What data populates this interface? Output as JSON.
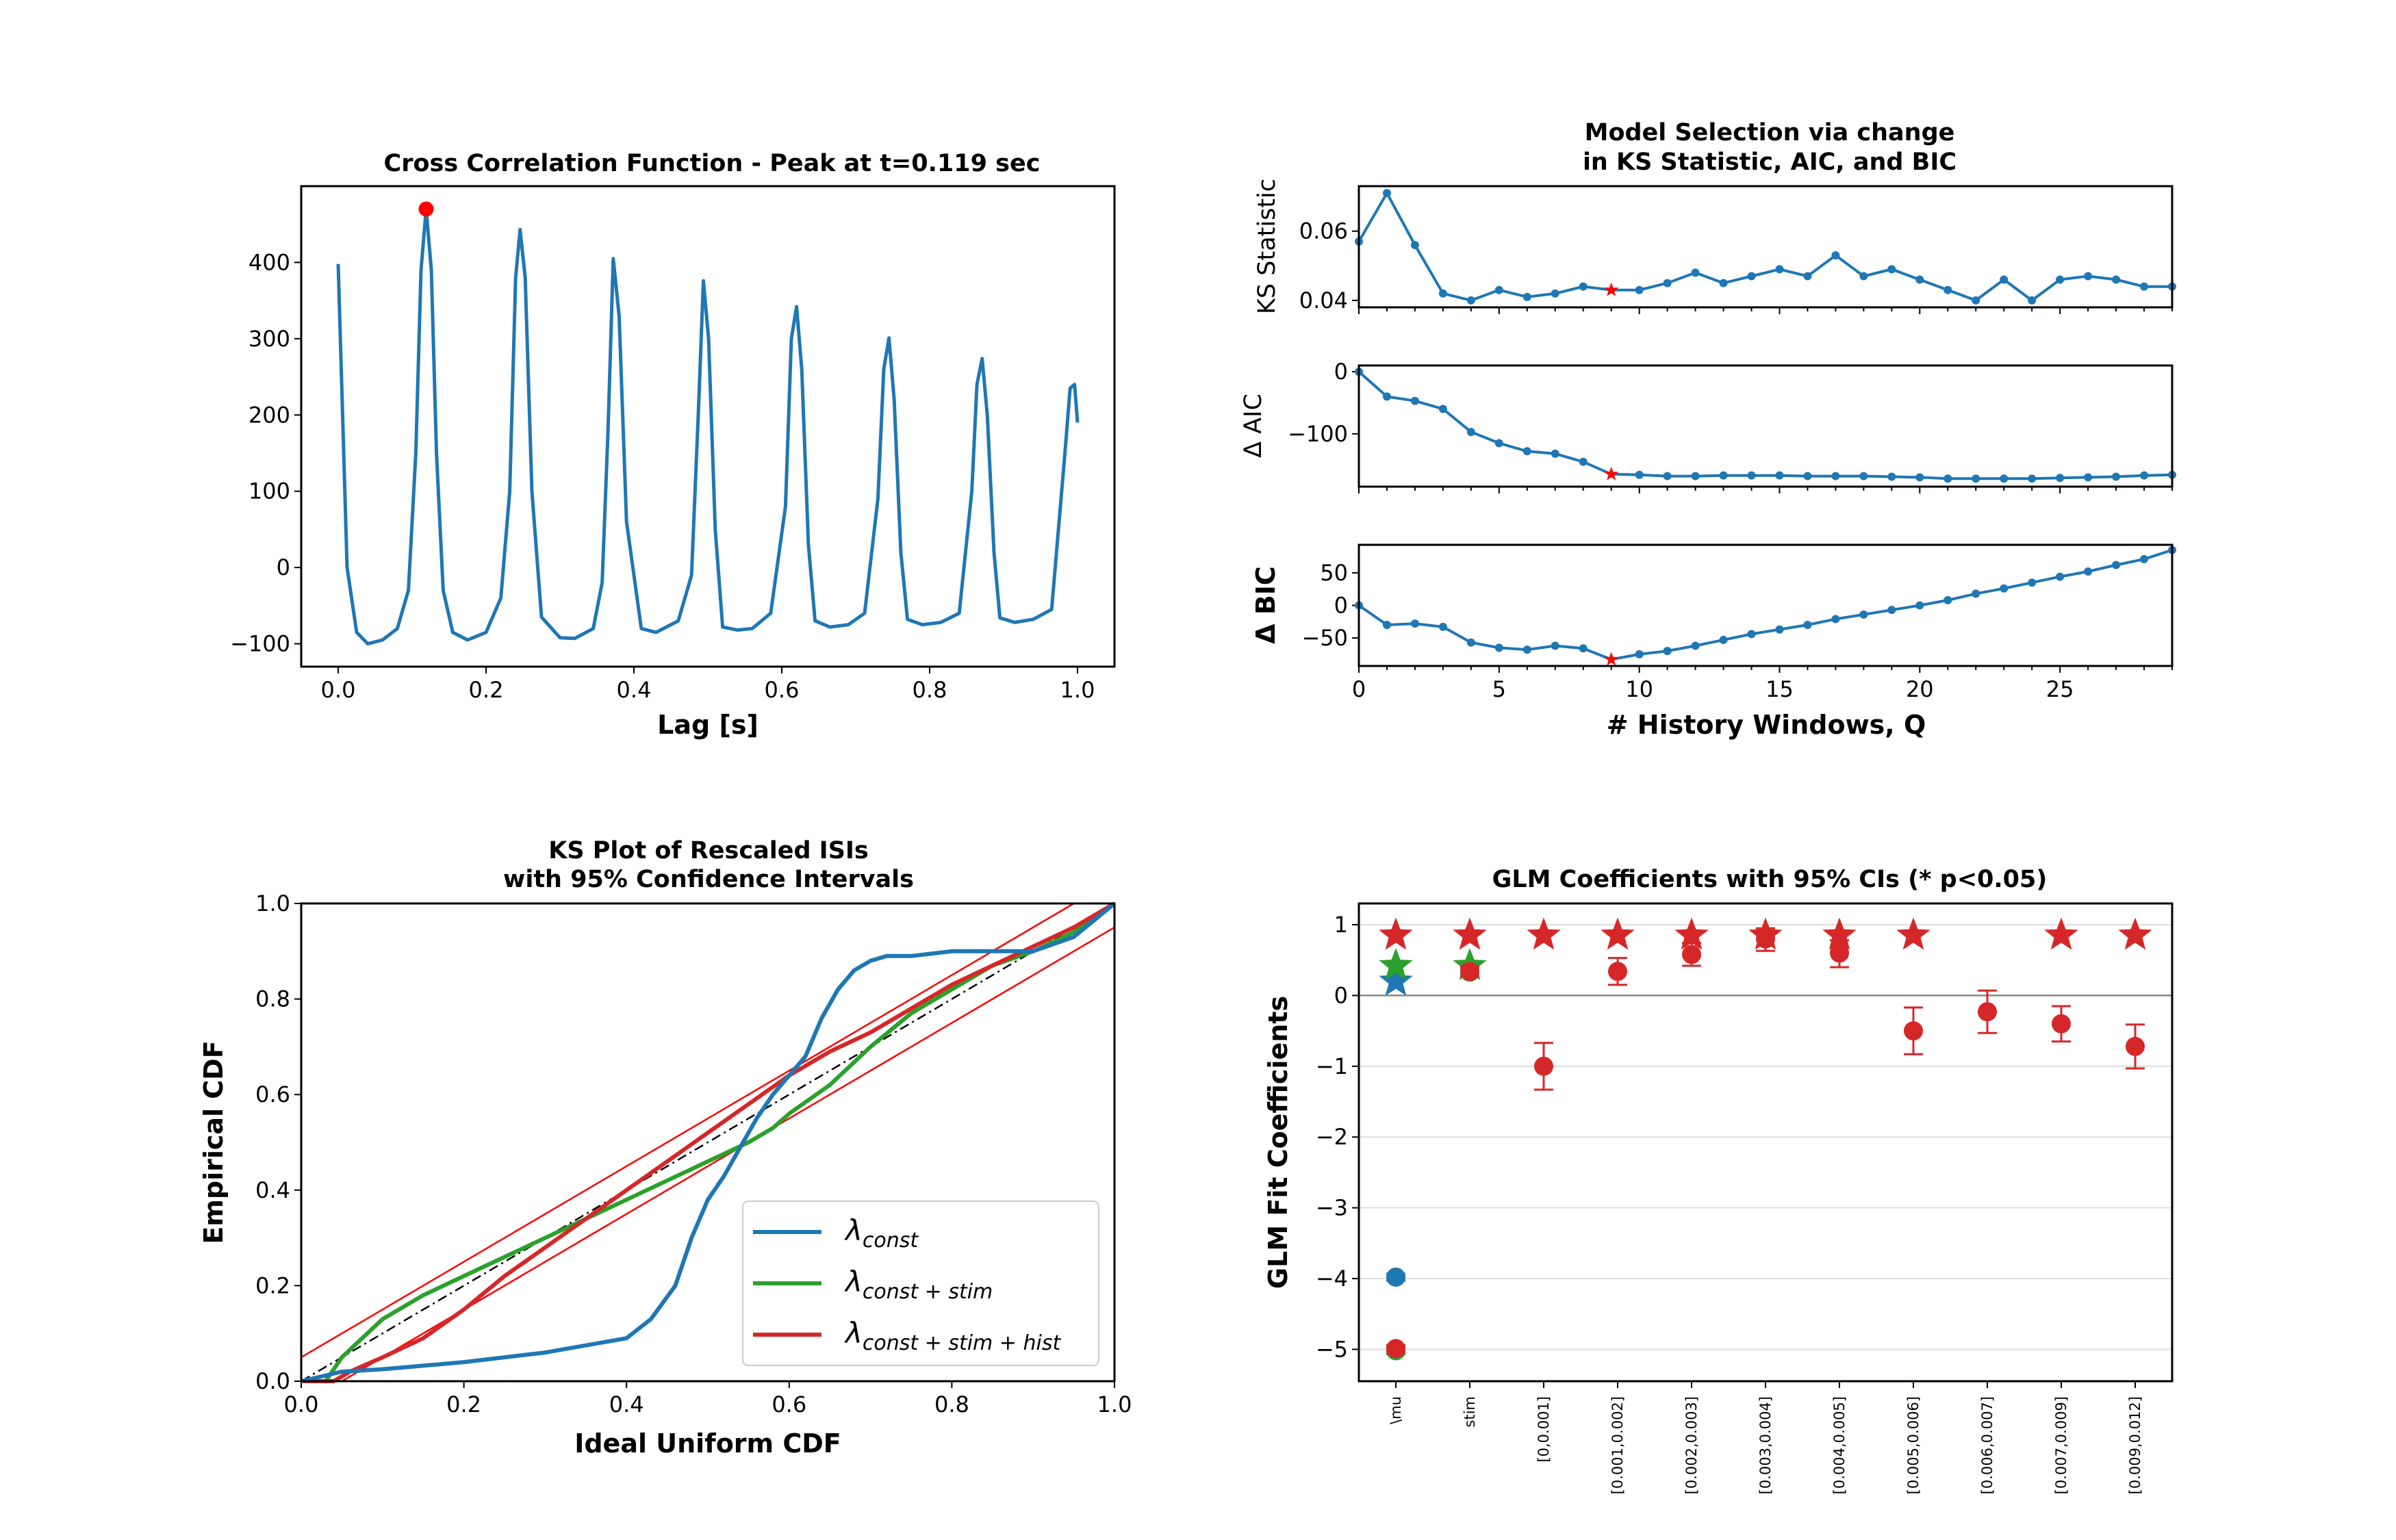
{
  "colors": {
    "blue": "#1f77b4",
    "green": "#2ca02c",
    "red": "#d62728",
    "marker_red": "#ff0000",
    "grid": "#dddddd"
  },
  "chart_data": [
    {
      "id": "ccf",
      "type": "line",
      "title": "Cross Correlation Function - Peak at t=0.119 sec",
      "xlabel": "Lag [s]",
      "ylabel": "",
      "xlim": [
        -0.05,
        1.05
      ],
      "ylim": [
        -130,
        500
      ],
      "xticks": [
        "0.0",
        "0.2",
        "0.4",
        "0.6",
        "0.8",
        "1.0"
      ],
      "xtick_values": [
        0,
        0.2,
        0.4,
        0.6,
        0.8,
        1.0
      ],
      "yticks": [
        "−100",
        "0",
        "100",
        "200",
        "300",
        "400"
      ],
      "ytick_values": [
        -100,
        0,
        100,
        200,
        300,
        400
      ],
      "peak": {
        "x": 0.119,
        "y": 470
      },
      "series": [
        {
          "x": [
            0.0,
            0.012,
            0.025,
            0.04,
            0.06,
            0.08,
            0.095,
            0.105,
            0.112,
            0.119,
            0.126,
            0.133,
            0.142,
            0.155,
            0.175,
            0.2,
            0.22,
            0.232,
            0.24,
            0.246,
            0.253,
            0.262,
            0.275,
            0.3,
            0.32,
            0.345,
            0.357,
            0.365,
            0.372,
            0.38,
            0.39,
            0.41,
            0.43,
            0.46,
            0.478,
            0.487,
            0.494,
            0.501,
            0.51,
            0.52,
            0.54,
            0.56,
            0.585,
            0.605,
            0.613,
            0.62,
            0.627,
            0.636,
            0.645,
            0.665,
            0.69,
            0.712,
            0.73,
            0.738,
            0.745,
            0.752,
            0.761,
            0.77,
            0.79,
            0.815,
            0.84,
            0.857,
            0.864,
            0.871,
            0.878,
            0.887,
            0.895,
            0.915,
            0.94,
            0.965,
            0.983,
            0.99,
            0.996,
            1.0
          ],
          "y": [
            398,
            0,
            -85,
            -100,
            -95,
            -80,
            -30,
            150,
            390,
            470,
            390,
            150,
            -30,
            -85,
            -95,
            -85,
            -40,
            100,
            380,
            443,
            380,
            100,
            -65,
            -92,
            -93,
            -80,
            -20,
            180,
            405,
            330,
            60,
            -80,
            -85,
            -70,
            -10,
            200,
            376,
            300,
            50,
            -78,
            -82,
            -80,
            -60,
            80,
            300,
            342,
            260,
            30,
            -70,
            -78,
            -75,
            -60,
            90,
            260,
            301,
            220,
            20,
            -68,
            -75,
            -72,
            -60,
            100,
            240,
            274,
            200,
            20,
            -66,
            -72,
            -68,
            -55,
            150,
            235,
            240,
            190
          ]
        }
      ]
    },
    {
      "id": "ks_stat",
      "type": "line",
      "title": "Model Selection via change in KS Statistic, AIC, and BIC",
      "title_lines": [
        "Model Selection via change",
        "in KS Statistic, AIC, and BIC"
      ],
      "ylabel": "KS Statistic",
      "xlim": [
        0,
        29
      ],
      "ylim": [
        0.038,
        0.073
      ],
      "yticks": [
        "0.04",
        "0.06"
      ],
      "ytick_values": [
        0.04,
        0.06
      ],
      "x": [
        0,
        1,
        2,
        3,
        4,
        5,
        6,
        7,
        8,
        9,
        10,
        11,
        12,
        13,
        14,
        15,
        16,
        17,
        18,
        19,
        20,
        21,
        22,
        23,
        24,
        25,
        26,
        27,
        28,
        29
      ],
      "values": [
        0.057,
        0.071,
        0.056,
        0.042,
        0.04,
        0.043,
        0.041,
        0.042,
        0.044,
        0.043,
        0.043,
        0.045,
        0.048,
        0.045,
        0.047,
        0.049,
        0.047,
        0.053,
        0.047,
        0.049,
        0.046,
        0.043,
        0.04,
        0.046,
        0.04,
        0.046,
        0.047,
        0.046,
        0.044,
        0.044
      ],
      "selected_index": 9
    },
    {
      "id": "aic",
      "type": "line",
      "ylabel": "Δ AIC",
      "xlim": [
        0,
        29
      ],
      "ylim": [
        -185,
        10
      ],
      "yticks": [
        "−100",
        "0"
      ],
      "ytick_values": [
        -100,
        0
      ],
      "x": [
        0,
        1,
        2,
        3,
        4,
        5,
        6,
        7,
        8,
        9,
        10,
        11,
        12,
        13,
        14,
        15,
        16,
        17,
        18,
        19,
        20,
        21,
        22,
        23,
        24,
        25,
        26,
        27,
        28,
        29
      ],
      "values": [
        0,
        -40,
        -47,
        -60,
        -97,
        -115,
        -128,
        -132,
        -145,
        -165,
        -166,
        -168,
        -168,
        -167,
        -167,
        -167,
        -168,
        -168,
        -168,
        -169,
        -170,
        -172,
        -172,
        -172,
        -172,
        -171,
        -170,
        -169,
        -167,
        -166
      ],
      "selected_index": 9
    },
    {
      "id": "bic",
      "type": "line",
      "xlabel": "# History Windows, Q",
      "ylabel": "Δ BIC",
      "xlim": [
        0,
        29
      ],
      "ylim": [
        -93,
        93
      ],
      "xticks": [
        "0",
        "5",
        "10",
        "15",
        "20",
        "25"
      ],
      "xtick_values": [
        0,
        5,
        10,
        15,
        20,
        25
      ],
      "yticks": [
        "−50",
        "0",
        "50"
      ],
      "ytick_values": [
        -50,
        0,
        50
      ],
      "x": [
        0,
        1,
        2,
        3,
        4,
        5,
        6,
        7,
        8,
        9,
        10,
        11,
        12,
        13,
        14,
        15,
        16,
        17,
        18,
        19,
        20,
        21,
        22,
        23,
        24,
        25,
        26,
        27,
        28,
        29
      ],
      "values": [
        0,
        -30,
        -28,
        -33,
        -57,
        -65,
        -68,
        -62,
        -66,
        -83,
        -75,
        -70,
        -62,
        -53,
        -44,
        -37,
        -30,
        -21,
        -14,
        -7,
        0,
        8,
        18,
        26,
        35,
        44,
        52,
        62,
        71,
        85
      ],
      "selected_index": 9
    },
    {
      "id": "ks_plot",
      "type": "line",
      "title": "KS Plot of Rescaled ISIs with 95% Confidence Intervals",
      "title_lines": [
        "KS Plot of Rescaled ISIs",
        "with 95% Confidence Intervals"
      ],
      "xlabel": "Ideal Uniform CDF",
      "ylabel": "Empirical CDF",
      "xlim": [
        0,
        1
      ],
      "ylim": [
        0,
        1
      ],
      "xticks": [
        "0.0",
        "0.2",
        "0.4",
        "0.6",
        "0.8",
        "1.0"
      ],
      "xtick_values": [
        0,
        0.2,
        0.4,
        0.6,
        0.8,
        1.0
      ],
      "yticks": [
        "0.0",
        "0.2",
        "0.4",
        "0.6",
        "0.8",
        "1.0"
      ],
      "ytick_values": [
        0,
        0.2,
        0.4,
        0.6,
        0.8,
        1.0
      ],
      "confidence_offset": 0.05,
      "legend_position": "lower-right",
      "series": [
        {
          "name": "λconst",
          "legend_main": "λ",
          "legend_sub": "const",
          "color_key": "blue",
          "x": [
            0.0,
            0.05,
            0.1,
            0.2,
            0.3,
            0.4,
            0.43,
            0.46,
            0.48,
            0.5,
            0.52,
            0.54,
            0.56,
            0.58,
            0.6,
            0.62,
            0.64,
            0.66,
            0.68,
            0.7,
            0.72,
            0.75,
            0.8,
            0.85,
            0.9,
            0.95,
            1.0
          ],
          "y": [
            0.0,
            0.02,
            0.025,
            0.04,
            0.06,
            0.09,
            0.13,
            0.2,
            0.3,
            0.38,
            0.43,
            0.49,
            0.55,
            0.6,
            0.64,
            0.68,
            0.76,
            0.82,
            0.86,
            0.88,
            0.89,
            0.89,
            0.9,
            0.9,
            0.9,
            0.93,
            1.0
          ]
        },
        {
          "name": "λconst+stim",
          "legend_main": "λ",
          "legend_sub": "const + stim",
          "color_key": "green",
          "x": [
            0.0,
            0.03,
            0.05,
            0.1,
            0.15,
            0.2,
            0.25,
            0.3,
            0.35,
            0.4,
            0.45,
            0.5,
            0.55,
            0.58,
            0.6,
            0.65,
            0.7,
            0.75,
            0.8,
            0.85,
            0.9,
            0.95,
            1.0
          ],
          "y": [
            0.0,
            0.0,
            0.05,
            0.13,
            0.18,
            0.22,
            0.26,
            0.3,
            0.34,
            0.38,
            0.42,
            0.46,
            0.5,
            0.53,
            0.56,
            0.62,
            0.7,
            0.77,
            0.82,
            0.87,
            0.9,
            0.94,
            1.0
          ]
        },
        {
          "name": "λconst+stim+hist",
          "legend_main": "λ",
          "legend_sub": "const + stim + hist",
          "color_key": "red",
          "x": [
            0.0,
            0.04,
            0.06,
            0.1,
            0.15,
            0.2,
            0.25,
            0.3,
            0.35,
            0.4,
            0.45,
            0.5,
            0.55,
            0.6,
            0.65,
            0.7,
            0.75,
            0.8,
            0.85,
            0.9,
            0.95,
            1.0
          ],
          "y": [
            0.0,
            0.0,
            0.02,
            0.05,
            0.09,
            0.15,
            0.22,
            0.28,
            0.34,
            0.4,
            0.46,
            0.52,
            0.58,
            0.64,
            0.69,
            0.73,
            0.78,
            0.83,
            0.87,
            0.91,
            0.95,
            1.0
          ]
        }
      ]
    },
    {
      "id": "glm",
      "type": "scatter",
      "title": "GLM Coefficients with 95% CIs (* p<0.05)",
      "ylabel": "GLM Fit Coefficients",
      "ylim": [
        -5.45,
        1.3
      ],
      "yticks": [
        "−5",
        "−4",
        "−3",
        "−2",
        "−1",
        "0",
        "1"
      ],
      "ytick_values": [
        -5,
        -4,
        -3,
        -2,
        -1,
        0,
        1
      ],
      "categories": [
        "\\mu",
        "stim",
        "[0,0.001]",
        "[0.001,0.002]",
        "[0.002,0.003]",
        "[0.003,0.004]",
        "[0.004,0.005]",
        "[0.005,0.006]",
        "[0.006,0.007]",
        "[0.007,0.009]",
        "[0.009,0.012]"
      ],
      "significance_y": 0.85,
      "series": [
        {
          "color_key": "blue",
          "category_indices": [
            0
          ],
          "values": [
            -3.98
          ],
          "ci_low": [
            -4.03
          ],
          "ci_high": [
            -3.93
          ],
          "significant": [
            true
          ],
          "star_y": [
            0.2
          ]
        },
        {
          "color_key": "green",
          "category_indices": [
            0,
            1
          ],
          "values": [
            -5.02,
            0.33
          ],
          "ci_low": [
            -5.07,
            0.28
          ],
          "ci_high": [
            -4.97,
            0.38
          ],
          "significant": [
            true,
            true
          ],
          "star_y": [
            0.42,
            0.42
          ]
        },
        {
          "color_key": "red",
          "category_indices": [
            0,
            1,
            2,
            3,
            4,
            5,
            6,
            7,
            8,
            9,
            10
          ],
          "values": [
            -4.99,
            0.34,
            -1.0,
            0.34,
            0.58,
            0.8,
            0.6,
            -0.5,
            -0.23,
            -0.4,
            -0.72
          ],
          "ci_low": [
            -5.04,
            0.27,
            -1.33,
            0.15,
            0.42,
            0.63,
            0.4,
            -0.83,
            -0.53,
            -0.65,
            -1.03
          ],
          "ci_high": [
            -4.94,
            0.41,
            -0.67,
            0.53,
            0.74,
            0.95,
            0.78,
            -0.17,
            0.07,
            -0.15,
            -0.41
          ],
          "significant": [
            true,
            true,
            true,
            true,
            true,
            true,
            true,
            true,
            false,
            true,
            true
          ],
          "star_y": [
            0.85,
            0.85,
            0.85,
            0.85,
            0.85,
            0.85,
            0.85,
            0.85,
            0.85,
            0.85,
            0.85
          ]
        }
      ]
    }
  ]
}
